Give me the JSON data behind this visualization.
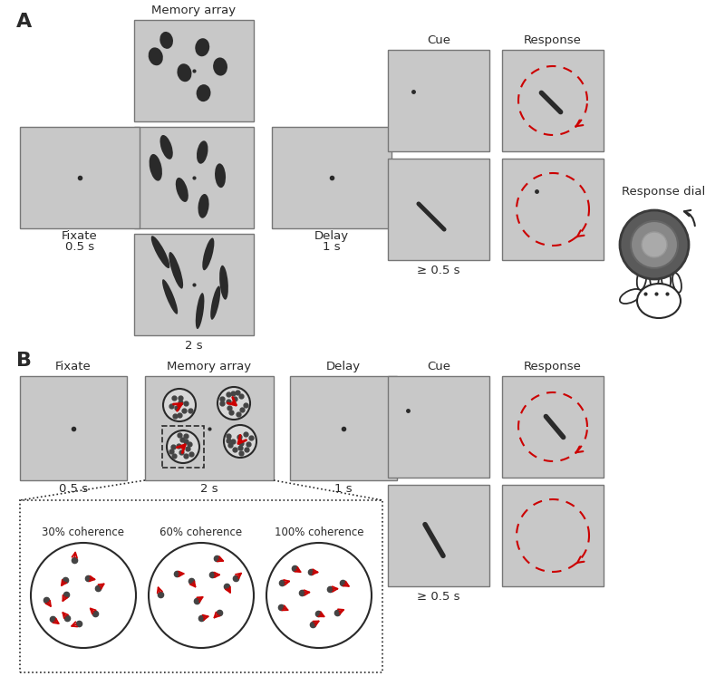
{
  "bg_color": "#c8c8c8",
  "dark": "#2a2a2a",
  "red": "#cc0000",
  "panel_A_label": "A",
  "panel_B_label": "B",
  "fixate_label": "Fixate",
  "memory_array_label": "Memory array",
  "delay_label": "Delay",
  "cue_label": "Cue",
  "response_label": "Response",
  "time_05": "0.5 s",
  "time_2": "2 s",
  "time_1": "1 s",
  "time_ge05": "≥ 0.5 s",
  "response_dial_label": "Response dial",
  "coherence_30": "30% coherence",
  "coherence_60": "60% coherence",
  "coherence_100": "100% coherence",
  "ellipses_top": [
    [
      0.27,
      0.8,
      0.11,
      0.17,
      10
    ],
    [
      0.18,
      0.64,
      0.12,
      0.18,
      15
    ],
    [
      0.57,
      0.73,
      0.12,
      0.18,
      -8
    ],
    [
      0.72,
      0.54,
      0.12,
      0.18,
      5
    ],
    [
      0.42,
      0.48,
      0.12,
      0.18,
      12
    ],
    [
      0.58,
      0.28,
      0.12,
      0.17,
      -5
    ]
  ],
  "ellipses_mid": [
    [
      0.27,
      0.8,
      0.09,
      0.25,
      18
    ],
    [
      0.18,
      0.6,
      0.1,
      0.27,
      12
    ],
    [
      0.57,
      0.75,
      0.09,
      0.23,
      -10
    ],
    [
      0.72,
      0.52,
      0.09,
      0.24,
      4
    ],
    [
      0.4,
      0.38,
      0.09,
      0.25,
      17
    ],
    [
      0.58,
      0.22,
      0.09,
      0.24,
      -6
    ]
  ],
  "ellipses_bot": [
    [
      0.22,
      0.82,
      0.07,
      0.36,
      28
    ],
    [
      0.35,
      0.64,
      0.07,
      0.38,
      18
    ],
    [
      0.62,
      0.8,
      0.07,
      0.33,
      -15
    ],
    [
      0.75,
      0.52,
      0.07,
      0.34,
      5
    ],
    [
      0.3,
      0.38,
      0.06,
      0.37,
      22
    ],
    [
      0.55,
      0.24,
      0.06,
      0.36,
      -8
    ],
    [
      0.68,
      0.32,
      0.06,
      0.34,
      -12
    ]
  ]
}
